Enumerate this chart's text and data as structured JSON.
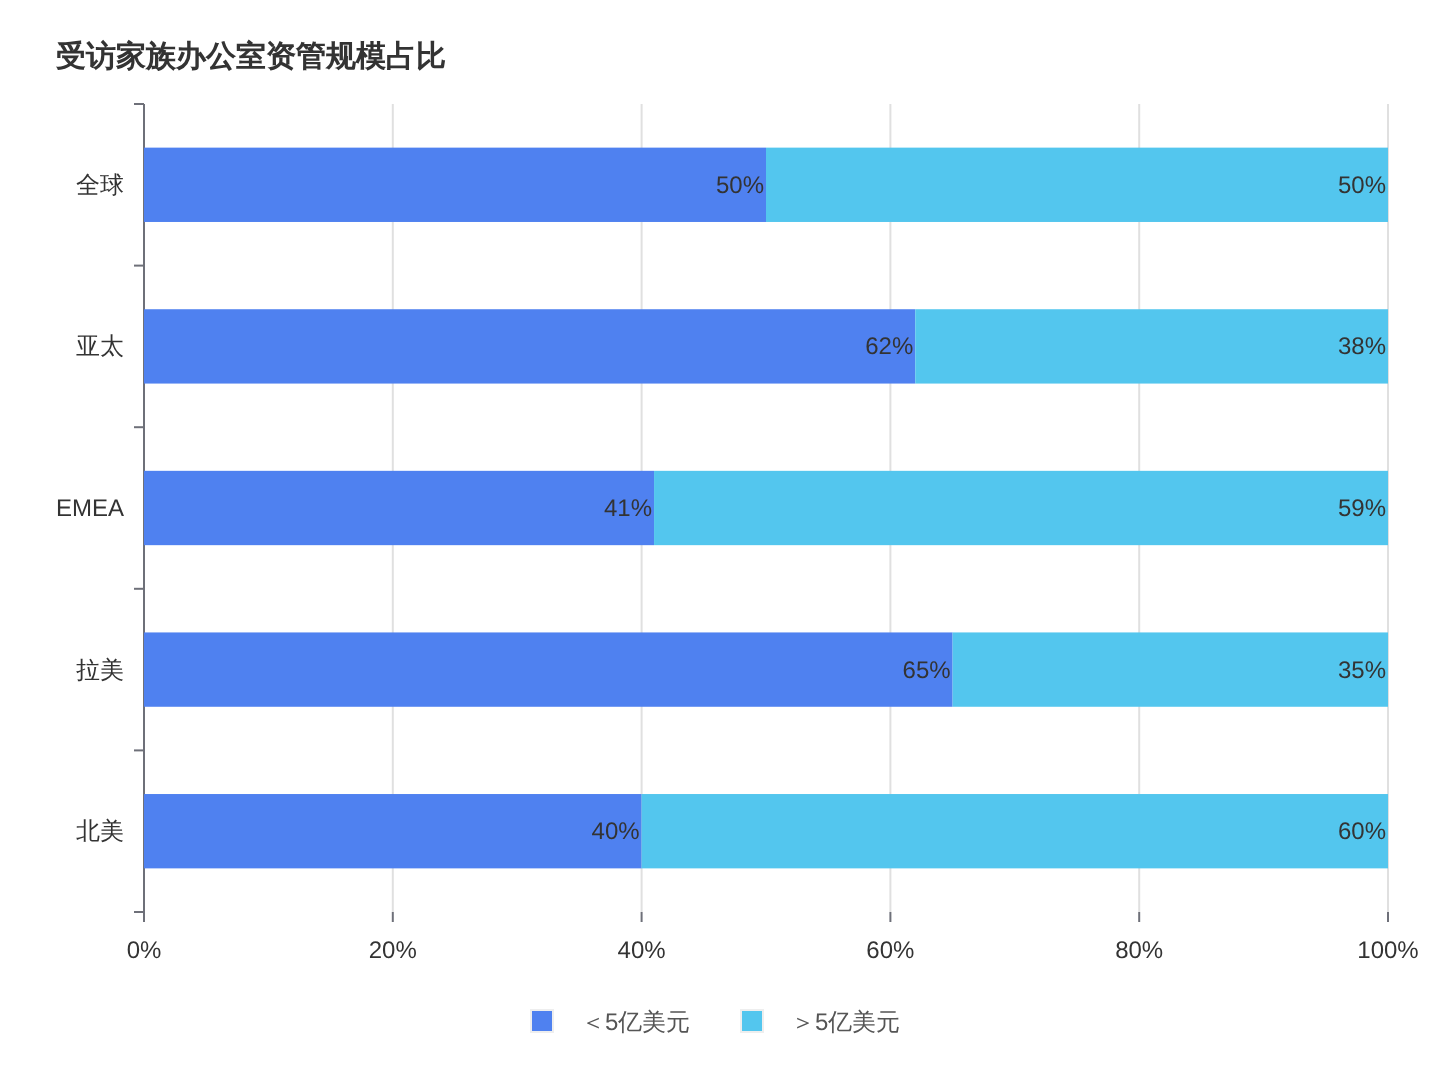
{
  "chart_data": {
    "type": "bar",
    "orientation": "horizontal",
    "stacked": true,
    "title": "受访家族办公室资管规模占比",
    "categories": [
      "全球",
      "亚太",
      "EMEA",
      "拉美",
      "北美"
    ],
    "series": [
      {
        "name": "＜5亿美元",
        "color": "#4f81f0",
        "values": [
          50,
          62,
          41,
          65,
          40
        ],
        "value_labels": [
          "50%",
          "62%",
          "41%",
          "65%",
          "40%"
        ]
      },
      {
        "name": "＞5亿美元",
        "color": "#53c6ee",
        "values": [
          50,
          38,
          59,
          35,
          60
        ],
        "value_labels": [
          "50%",
          "38%",
          "59%",
          "35%",
          "60%"
        ]
      }
    ],
    "xlim": [
      0,
      100
    ],
    "xticks": [
      {
        "value": 0,
        "label": "0%"
      },
      {
        "value": 20,
        "label": "20%"
      },
      {
        "value": 40,
        "label": "40%"
      },
      {
        "value": 60,
        "label": "60%"
      },
      {
        "value": 80,
        "label": "80%"
      },
      {
        "value": 100,
        "label": "100%"
      }
    ],
    "grid": "x",
    "legend": "bottom"
  }
}
